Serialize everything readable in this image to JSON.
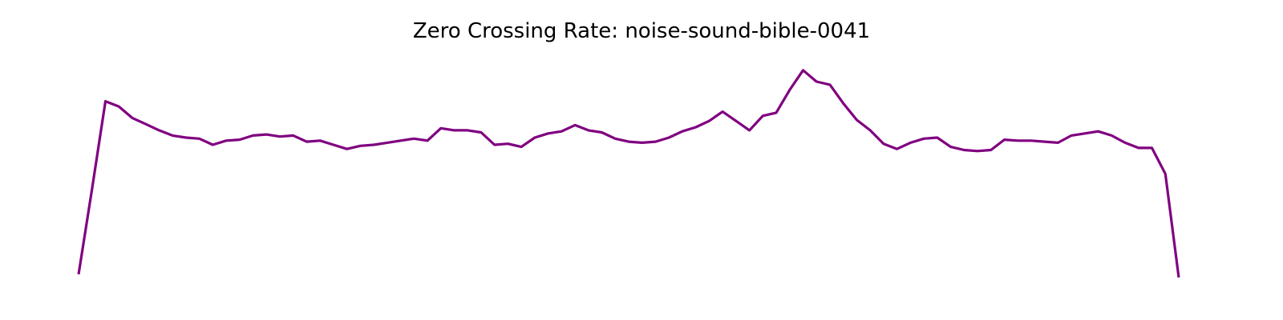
{
  "chart_data": {
    "type": "line",
    "title": "Zero Crossing Rate: noise-sound-bible-0041",
    "xlabel": "",
    "ylabel": "",
    "axes_visible": false,
    "grid": false,
    "legend": "none",
    "color": "#800080",
    "x": [
      0,
      1,
      2,
      3,
      4,
      5,
      6,
      7,
      8,
      9,
      10,
      11,
      12,
      13,
      14,
      15,
      16,
      17,
      18,
      19,
      20,
      21,
      22,
      23,
      24,
      25,
      26,
      27,
      28,
      29,
      30,
      31,
      32,
      33,
      34,
      35,
      36,
      37,
      38,
      39,
      40,
      41,
      42,
      43,
      44,
      45,
      46,
      47,
      48,
      49,
      50,
      51,
      52,
      53,
      54,
      55,
      56,
      57,
      58,
      59,
      60,
      61,
      62,
      63,
      64,
      65,
      66,
      67,
      68,
      69,
      70,
      71,
      72,
      73,
      74,
      75,
      76,
      77,
      78,
      79,
      80,
      81,
      82
    ],
    "series": [
      {
        "values": [
          0.052,
          0.134,
          0.219,
          0.214,
          0.203,
          0.197,
          0.191,
          0.186,
          0.184,
          0.183,
          0.177,
          0.181,
          0.182,
          0.186,
          0.187,
          0.185,
          0.186,
          0.18,
          0.181,
          0.177,
          0.173,
          0.176,
          0.177,
          0.179,
          0.181,
          0.183,
          0.181,
          0.193,
          0.191,
          0.191,
          0.189,
          0.177,
          0.178,
          0.175,
          0.184,
          0.188,
          0.19,
          0.196,
          0.191,
          0.189,
          0.183,
          0.18,
          0.179,
          0.18,
          0.184,
          0.19,
          0.194,
          0.2,
          0.209,
          0.2,
          0.191,
          0.205,
          0.208,
          0.23,
          0.249,
          0.238,
          0.235,
          0.217,
          0.201,
          0.191,
          0.178,
          0.173,
          0.179,
          0.183,
          0.184,
          0.175,
          0.172,
          0.171,
          0.172,
          0.182,
          0.181,
          0.181,
          0.18,
          0.179,
          0.186,
          0.188,
          0.19,
          0.186,
          0.179,
          0.174,
          0.174,
          0.149,
          0.049
        ]
      }
    ],
    "ylim": [
      0.045,
      0.255
    ]
  }
}
